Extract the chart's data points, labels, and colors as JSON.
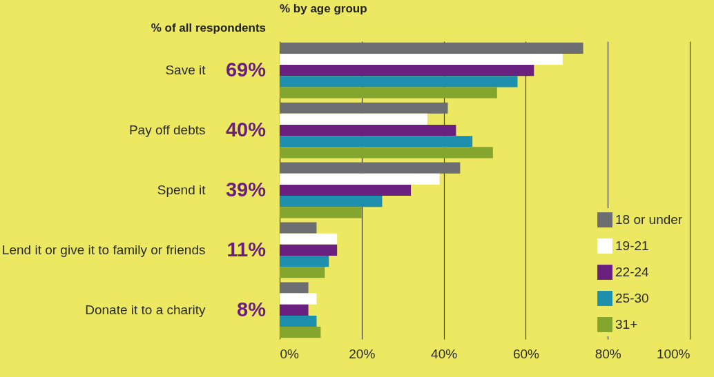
{
  "chart_data": {
    "type": "bar",
    "orientation": "horizontal",
    "title": "% by age group",
    "categories": [
      "Save it",
      "Pay off debts",
      "Spend it",
      "Lend it or give it to family or friends",
      "Donate it to a charity"
    ],
    "series": [
      {
        "name": "18 or under",
        "color": "#6d6e71",
        "values": [
          74,
          41,
          44,
          9,
          7
        ]
      },
      {
        "name": "19-21",
        "color": "#ffffff",
        "values": [
          69,
          36,
          39,
          14,
          9
        ]
      },
      {
        "name": "22-24",
        "color": "#69207e",
        "values": [
          62,
          43,
          32,
          14,
          7
        ]
      },
      {
        "name": "25-30",
        "color": "#1e90ad",
        "values": [
          58,
          47,
          25,
          12,
          9
        ]
      },
      {
        "name": "31+",
        "color": "#84a62f",
        "values": [
          53,
          52,
          20,
          11,
          10
        ]
      }
    ],
    "xlim": [
      0,
      100
    ],
    "xticks": [
      {
        "value": 0,
        "label": "0%"
      },
      {
        "value": 20,
        "label": "20%"
      },
      {
        "value": 40,
        "label": "40%"
      },
      {
        "value": 60,
        "label": "60%"
      },
      {
        "value": 80,
        "label": "80%"
      },
      {
        "value": 100,
        "label": "100%"
      }
    ],
    "grid": "x",
    "legend": "bottom right",
    "annotations": [
      "% of all respondents",
      "69%",
      "40%",
      "39%",
      "11%",
      "8%"
    ]
  }
}
